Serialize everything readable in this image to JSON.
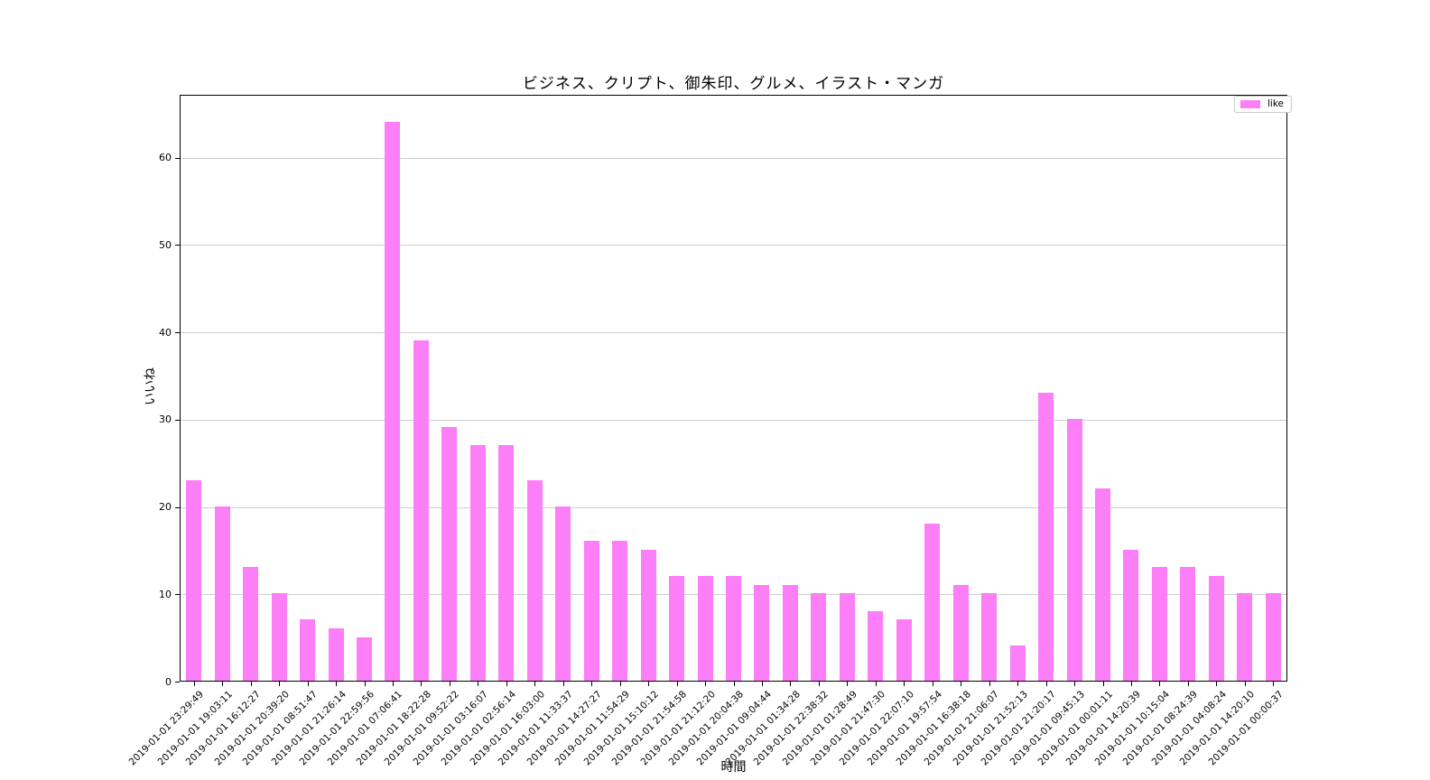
{
  "title": "ビジネス、クリプト、御朱印、グルメ、イラスト・マンガ",
  "axes": {
    "x_label": "時間",
    "y_label": "いいね",
    "y_ticks": [
      0,
      10,
      20,
      30,
      40,
      50,
      60
    ]
  },
  "legend": {
    "label": "like",
    "position": "upper right"
  },
  "colors": {
    "bar": "#FD7FF8",
    "grid": "#cfcfcf",
    "spine": "#000000",
    "text": "#000000"
  },
  "chart_data": {
    "type": "bar",
    "title": "ビジネス、クリプト、御朱印、グルメ、イラスト・マンガ",
    "xlabel": "時間",
    "ylabel": "いいね",
    "ylim": [
      0,
      67.2
    ],
    "grid": "horizontal",
    "legend_entries": [
      "like"
    ],
    "legend_position": "upper right",
    "categories": [
      "2019-01-01 23:29:49",
      "2019-01-01 19:03:11",
      "2019-01-01 16:12:27",
      "2019-01-01 20:39:20",
      "2019-01-01 08:51:47",
      "2019-01-01 21:26:14",
      "2019-01-01 22:59:56",
      "2019-01-01 07:06:41",
      "2019-01-01 18:22:28",
      "2019-01-01 09:52:22",
      "2019-01-01 03:16:07",
      "2019-01-01 02:56:14",
      "2019-01-01 16:03:00",
      "2019-01-01 11:33:37",
      "2019-01-01 14:27:27",
      "2019-01-01 11:54:29",
      "2019-01-01 15:10:12",
      "2019-01-01 21:54:58",
      "2019-01-01 21:12:20",
      "2019-01-01 20:04:38",
      "2019-01-01 09:04:44",
      "2019-01-01 01:34:28",
      "2019-01-01 22:38:32",
      "2019-01-01 01:28:49",
      "2019-01-01 21:47:30",
      "2019-01-01 22:07:10",
      "2019-01-01 19:57:54",
      "2019-01-01 16:38:18",
      "2019-01-01 21:06:07",
      "2019-01-01 21:52:13",
      "2019-01-01 21:20:17",
      "2019-01-01 09:45:13",
      "2019-01-01 00:01:11",
      "2019-01-01 14:20:39",
      "2019-01-01 10:15:04",
      "2019-01-01 08:24:39",
      "2019-01-01 04:08:24",
      "2019-01-01 14:20:10",
      "2019-01-01 00:00:37"
    ],
    "values": [
      23,
      20,
      13,
      10,
      7,
      6,
      5,
      64,
      39,
      29,
      27,
      27,
      23,
      20,
      16,
      16,
      15,
      12,
      12,
      12,
      11,
      11,
      10,
      10,
      8,
      7,
      18,
      11,
      10,
      4,
      33,
      30,
      22,
      15,
      13,
      13,
      12,
      10,
      10
    ],
    "series": [
      {
        "name": "like",
        "values": [
          23,
          20,
          13,
          10,
          7,
          6,
          5,
          64,
          39,
          29,
          27,
          27,
          23,
          20,
          16,
          16,
          15,
          12,
          12,
          12,
          11,
          11,
          10,
          10,
          8,
          7,
          18,
          11,
          10,
          4,
          33,
          30,
          22,
          15,
          13,
          13,
          12,
          10,
          10
        ]
      }
    ]
  }
}
